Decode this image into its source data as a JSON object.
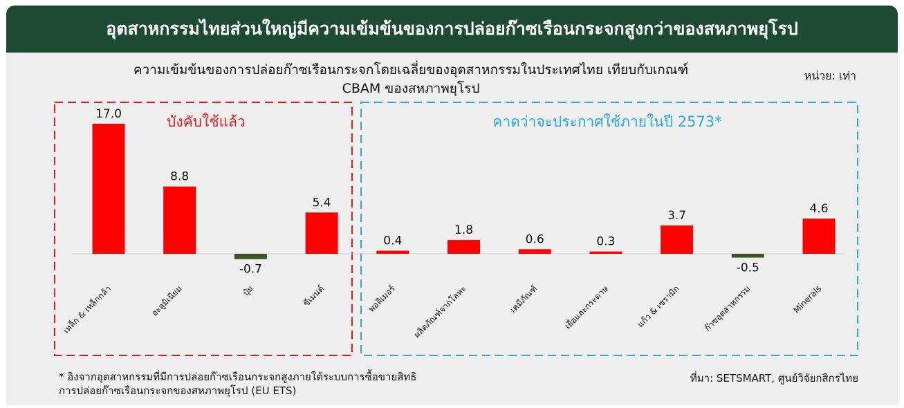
{
  "banner": {
    "title": "อุตสาหกรรมไทยส่วนใหญ่มีความเข้มข้นของการปล่อยก๊าซเรือนกระจกสูงกว่าของสหภาพยุโรป"
  },
  "header": {
    "subtitle_line1": "ความเข้มข้นของการปล่อยก๊าซเรือนกระจกโดยเฉลี่ยของอุตสาหกรรมในประเทศไทย เทียบกับเกณฑ์",
    "subtitle_line2": "CBAM ของสหภาพยุโรป",
    "unit": "หน่วย: เท่า"
  },
  "groups": {
    "enforced_label": "บังคับใช้แล้ว",
    "expected_label": "คาดว่าจะประกาศใช้ภายในปี 2573*"
  },
  "colors": {
    "positive": "#ff0000",
    "negative": "#375623",
    "banner": "#1d4a33",
    "enforced_border": "#e31b1b",
    "expected_border": "#29a9e0"
  },
  "chart_data": {
    "type": "bar",
    "categories": [
      "เหล็ก & เหล็กกล้า",
      "อะลูมิเนียม",
      "ปุ๋ย",
      "ซีเมนต์",
      "พอลิเมอร์",
      "ผลิตภัณฑ์จากโลหะ",
      "เคมีภัณฑ์",
      "เยื่อและกระดาษ",
      "แก้ว & เซรามิก",
      "ก๊าซอุตสาหกรรม",
      "Minerals"
    ],
    "values": [
      17.0,
      8.8,
      -0.7,
      5.4,
      0.4,
      1.8,
      0.6,
      0.3,
      3.7,
      -0.5,
      4.6
    ],
    "value_labels": [
      "17.0",
      "8.8",
      "-0.7",
      "5.4",
      "0.4",
      "1.8",
      "0.6",
      "0.3",
      "3.7",
      "-0.5",
      "4.6"
    ],
    "groups": [
      {
        "name": "บังคับใช้แล้ว",
        "categories": [
          "เหล็ก & เหล็กกล้า",
          "อะลูมิเนียม",
          "ปุ๋ย",
          "ซีเมนต์"
        ]
      },
      {
        "name": "คาดว่าจะประกาศใช้ภายในปี 2573*",
        "categories": [
          "พอลิเมอร์",
          "ผลิตภัณฑ์จากโลหะ",
          "เคมีภัณฑ์",
          "เยื่อและกระดาษ",
          "แก้ว & เซรามิก",
          "ก๊าซอุตสาหกรรม",
          "Minerals"
        ]
      }
    ],
    "ylim": [
      -0.7,
      17.0
    ],
    "grid": false,
    "title": "ความเข้มข้นของการปล่อยก๊าซเรือนกระจกโดยเฉลี่ยของอุตสาหกรรมในประเทศไทย เทียบกับเกณฑ์ CBAM ของสหภาพยุโรป",
    "xlabel": "",
    "ylabel": ""
  },
  "footer": {
    "footnote_line1": "* อิงจากอุตสาหกรรมที่มีการปล่อยก๊าซเรือนกระจกสูงภายใต้ระบบการซื้อขายสิทธิ",
    "footnote_line2": "การปล่อยก๊าซเรือนกระจกของสหภาพยุโรป (EU ETS)",
    "source": "ที่มา: SETSMART, ศูนย์วิจัยกสิกรไทย"
  }
}
